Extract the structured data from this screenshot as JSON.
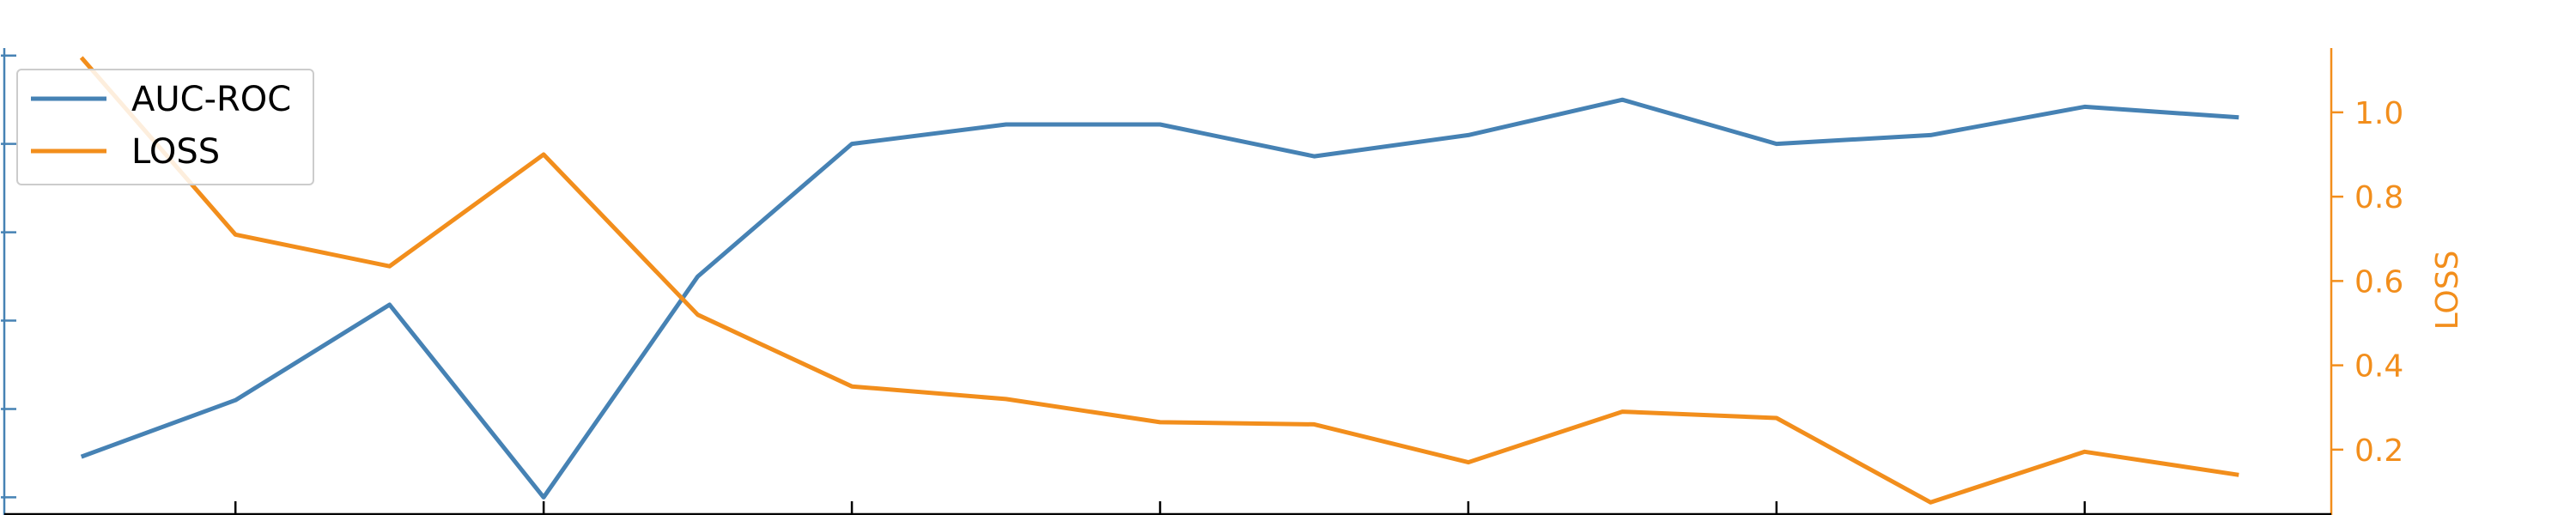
{
  "chart_data": {
    "type": "line",
    "x": [
      0,
      1,
      2,
      3,
      4,
      5,
      6,
      7,
      8,
      9,
      10,
      11,
      12,
      13,
      14
    ],
    "series": [
      {
        "name": "AUC-ROC",
        "axis": "left",
        "color": "#4682b4",
        "values": [
          0.115,
          0.275,
          0.545,
          0.0,
          0.625,
          1.0,
          1.055,
          1.055,
          0.965,
          1.025,
          1.125,
          1.0,
          1.025,
          1.105,
          1.075
        ]
      },
      {
        "name": "LOSS",
        "axis": "right",
        "color": "#f28e1c",
        "values": [
          1.13,
          0.71,
          0.635,
          0.9,
          0.52,
          0.35,
          0.32,
          0.265,
          0.26,
          0.17,
          0.29,
          0.275,
          0.075,
          0.195,
          0.14
        ]
      }
    ],
    "xlim": [
      -0.5,
      14.6
    ],
    "ylim_left": [
      -0.05,
      1.31
    ],
    "ylim_right": [
      0.045,
      1.185
    ],
    "x_ticks": [
      1,
      3,
      5,
      7,
      9,
      11,
      13
    ],
    "y_left_ticks": [
      0.0,
      0.25,
      0.5,
      0.75,
      1.0,
      1.25
    ],
    "y_right_ticks": [
      0.2,
      0.4,
      0.6,
      0.8,
      1.0
    ],
    "y_right_tick_labels": [
      "0.2",
      "0.4",
      "0.6",
      "0.8",
      "1.0"
    ],
    "ylabel_right": "LOSS",
    "legend": {
      "position": "upper-left",
      "entries": [
        "AUC-ROC",
        "LOSS"
      ]
    },
    "grid": false
  }
}
